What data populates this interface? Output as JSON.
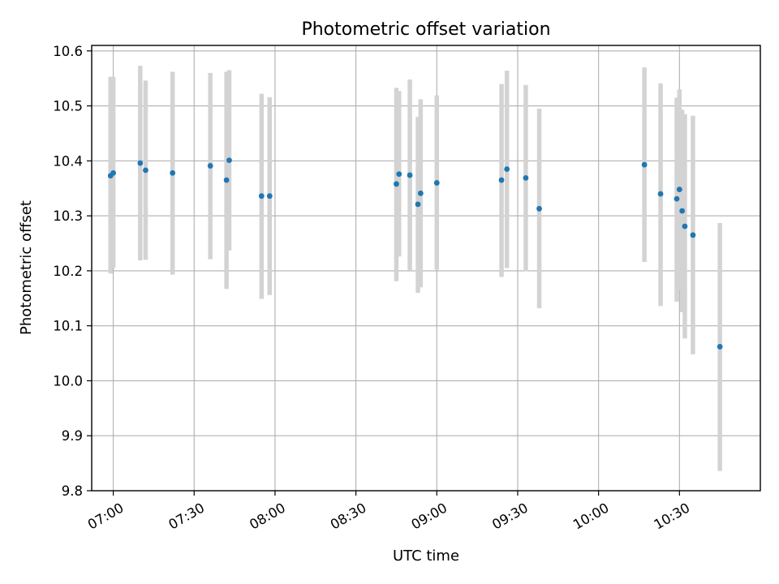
{
  "chart_data": {
    "type": "scatter",
    "title": "Photometric offset variation",
    "xlabel": "UTC time",
    "ylabel": "Photometric offset",
    "xlim": [
      "06:52",
      "11:00"
    ],
    "ylim": [
      9.8,
      10.61
    ],
    "x_ticks": [
      "07:00",
      "07:30",
      "08:00",
      "08:30",
      "09:00",
      "09:30",
      "10:00",
      "10:30"
    ],
    "y_ticks": [
      "9.8",
      "9.9",
      "10.0",
      "10.1",
      "10.2",
      "10.3",
      "10.4",
      "10.5",
      "10.6"
    ],
    "grid": true,
    "colors": {
      "point": "#1f77b4",
      "errorbar": "#d3d3d3"
    },
    "points": [
      {
        "x": "06:59",
        "y": 10.373,
        "low": 10.195,
        "high": 10.553
      },
      {
        "x": "07:00",
        "y": 10.378,
        "low": 10.205,
        "high": 10.553
      },
      {
        "x": "07:10",
        "y": 10.396,
        "low": 10.219,
        "high": 10.573
      },
      {
        "x": "07:12",
        "y": 10.383,
        "low": 10.22,
        "high": 10.546
      },
      {
        "x": "07:22",
        "y": 10.378,
        "low": 10.193,
        "high": 10.562
      },
      {
        "x": "07:36",
        "y": 10.391,
        "low": 10.221,
        "high": 10.56
      },
      {
        "x": "07:42",
        "y": 10.365,
        "low": 10.167,
        "high": 10.562
      },
      {
        "x": "07:43",
        "y": 10.401,
        "low": 10.237,
        "high": 10.565
      },
      {
        "x": "07:55",
        "y": 10.336,
        "low": 10.149,
        "high": 10.522
      },
      {
        "x": "07:58",
        "y": 10.336,
        "low": 10.156,
        "high": 10.516
      },
      {
        "x": "08:45",
        "y": 10.358,
        "low": 10.181,
        "high": 10.533
      },
      {
        "x": "08:46",
        "y": 10.376,
        "low": 10.226,
        "high": 10.527
      },
      {
        "x": "08:50",
        "y": 10.374,
        "low": 10.2,
        "high": 10.548
      },
      {
        "x": "08:53",
        "y": 10.321,
        "low": 10.16,
        "high": 10.48
      },
      {
        "x": "08:54",
        "y": 10.341,
        "low": 10.17,
        "high": 10.512
      },
      {
        "x": "09:00",
        "y": 10.36,
        "low": 10.202,
        "high": 10.519
      },
      {
        "x": "09:24",
        "y": 10.365,
        "low": 10.189,
        "high": 10.54
      },
      {
        "x": "09:26",
        "y": 10.385,
        "low": 10.205,
        "high": 10.564
      },
      {
        "x": "09:33",
        "y": 10.369,
        "low": 10.199,
        "high": 10.538
      },
      {
        "x": "09:38",
        "y": 10.313,
        "low": 10.132,
        "high": 10.495
      },
      {
        "x": "10:17",
        "y": 10.393,
        "low": 10.216,
        "high": 10.57
      },
      {
        "x": "10:23",
        "y": 10.34,
        "low": 10.136,
        "high": 10.541
      },
      {
        "x": "10:29",
        "y": 10.331,
        "low": 10.144,
        "high": 10.515
      },
      {
        "x": "10:30",
        "y": 10.348,
        "low": 10.165,
        "high": 10.53
      },
      {
        "x": "10:31",
        "y": 10.309,
        "low": 10.125,
        "high": 10.493
      },
      {
        "x": "10:32",
        "y": 10.281,
        "low": 10.077,
        "high": 10.485
      },
      {
        "x": "10:35",
        "y": 10.265,
        "low": 10.048,
        "high": 10.482
      },
      {
        "x": "10:45",
        "y": 10.062,
        "low": 9.836,
        "high": 10.287
      }
    ]
  }
}
